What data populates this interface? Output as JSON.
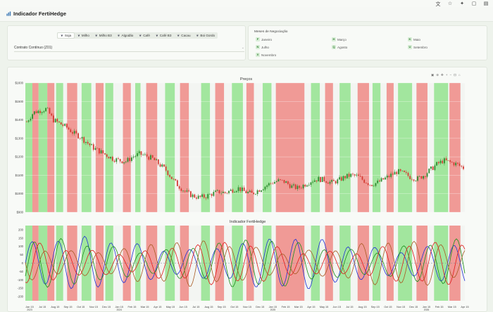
{
  "app": {
    "title": "Indicador FertiHedge"
  },
  "tabs": [
    {
      "label": "Soja",
      "active": true
    },
    {
      "label": "Milho",
      "active": false
    },
    {
      "label": "Milho B3",
      "active": false
    },
    {
      "label": "Algodão",
      "active": false
    },
    {
      "label": "Café",
      "active": false
    },
    {
      "label": "Café B3",
      "active": false
    },
    {
      "label": "Cacau",
      "active": false
    },
    {
      "label": "Boi Gordo",
      "active": false
    }
  ],
  "contract_select": {
    "value": "Contrato Contínuo (Z01)"
  },
  "months_legend": {
    "title": "Meses de Negociação",
    "items": [
      {
        "code": "F",
        "name": "Janeiro"
      },
      {
        "code": "H",
        "name": "Março"
      },
      {
        "code": "K",
        "name": "Maio"
      },
      {
        "code": "N",
        "name": "Julho"
      },
      {
        "code": "Q",
        "name": "Agosto"
      },
      {
        "code": "U",
        "name": "Setembro"
      },
      {
        "code": "X",
        "name": "Novembro"
      }
    ]
  },
  "colors": {
    "buy_band": "#93e38f",
    "sell_band": "#ee8a86",
    "price_up": "#2e8b2e",
    "price_down": "#d43b33",
    "osc_blue": "#1f2fd6",
    "osc_green": "#1a8f1a",
    "osc_red": "#e01b1b",
    "osc_brown": "#a85a22"
  },
  "chart_data": [
    {
      "type": "candlestick",
      "title": "Preços",
      "y_ticks": [
        "$1600",
        "$1500",
        "$1400",
        "$1300",
        "$1200",
        "$1100",
        "$1000",
        "$900"
      ],
      "ylim": [
        900,
        1600
      ],
      "price_path": [
        1390,
        1440,
        1450,
        1460,
        1400,
        1380,
        1360,
        1330,
        1310,
        1280,
        1250,
        1230,
        1210,
        1190,
        1180,
        1175,
        1200,
        1215,
        1205,
        1190,
        1160,
        1130,
        1080,
        1040,
        1010,
        990,
        980,
        985,
        1000,
        1010,
        1005,
        1020,
        1030,
        1010,
        1000,
        1020,
        1040,
        1060,
        1070,
        1065,
        1040,
        1030,
        1050,
        1070,
        1080,
        1075,
        1060,
        1070,
        1090,
        1100,
        1095,
        1070,
        1050,
        1060,
        1080,
        1100,
        1120,
        1110,
        1090,
        1080,
        1100,
        1130,
        1160,
        1180,
        1170,
        1160,
        1140
      ],
      "bands": [
        {
          "color": "buy",
          "from": 0.0,
          "to": 0.016
        },
        {
          "color": "sell",
          "from": 0.016,
          "to": 0.03
        },
        {
          "color": "buy",
          "from": 0.03,
          "to": 0.05
        },
        {
          "color": "sell",
          "from": 0.05,
          "to": 0.066
        },
        {
          "color": "buy",
          "from": 0.07,
          "to": 0.086
        },
        {
          "color": "sell",
          "from": 0.095,
          "to": 0.118
        },
        {
          "color": "buy",
          "from": 0.128,
          "to": 0.15
        },
        {
          "color": "sell",
          "from": 0.16,
          "to": 0.178
        },
        {
          "color": "buy",
          "from": 0.182,
          "to": 0.2
        },
        {
          "color": "sell",
          "from": 0.222,
          "to": 0.24
        },
        {
          "color": "buy",
          "from": 0.25,
          "to": 0.262
        },
        {
          "color": "sell",
          "from": 0.275,
          "to": 0.3
        },
        {
          "color": "buy",
          "from": 0.318,
          "to": 0.34
        },
        {
          "color": "sell",
          "from": 0.352,
          "to": 0.372
        },
        {
          "color": "buy",
          "from": 0.4,
          "to": 0.42
        },
        {
          "color": "sell",
          "from": 0.432,
          "to": 0.452
        },
        {
          "color": "buy",
          "from": 0.47,
          "to": 0.495
        },
        {
          "color": "sell",
          "from": 0.503,
          "to": 0.52
        },
        {
          "color": "buy",
          "from": 0.54,
          "to": 0.56
        },
        {
          "color": "sell",
          "from": 0.57,
          "to": 0.635
        },
        {
          "color": "buy",
          "from": 0.65,
          "to": 0.67
        },
        {
          "color": "sell",
          "from": 0.682,
          "to": 0.7
        },
        {
          "color": "buy",
          "from": 0.715,
          "to": 0.74
        },
        {
          "color": "sell",
          "from": 0.756,
          "to": 0.782
        },
        {
          "color": "buy",
          "from": 0.79,
          "to": 0.808
        },
        {
          "color": "sell",
          "from": 0.822,
          "to": 0.838
        },
        {
          "color": "buy",
          "from": 0.848,
          "to": 0.88
        },
        {
          "color": "sell",
          "from": 0.89,
          "to": 0.915
        },
        {
          "color": "buy",
          "from": 0.93,
          "to": 0.962
        },
        {
          "color": "sell",
          "from": 0.965,
          "to": 0.99
        }
      ]
    },
    {
      "type": "line",
      "title": "Indicador FertiHedge",
      "y_ticks": [
        "200",
        "150",
        "100",
        "50",
        "0",
        "-50",
        "-100",
        "-150",
        "-200"
      ],
      "ylim": [
        -225,
        225
      ],
      "x_ticks": [
        "Jan 15\n2023",
        "Jul 15",
        "Aug 15",
        "Sep 15",
        "Oct 15",
        "Nov 15",
        "Dec 15",
        "Jan 15\n2024",
        "Feb 15",
        "Mar 15",
        "Apr 15",
        "May 15",
        "Jun 15",
        "Jul 15",
        "Aug 15",
        "Sep 15",
        "Oct 15",
        "Nov 15",
        "Dec 15",
        "Jan 15\n2025",
        "Feb 15",
        "Mar 15",
        "Apr 15",
        "May 15",
        "Jun 15",
        "Jul 15",
        "Aug 15",
        "Sep 15",
        "Oct 15",
        "Nov 15",
        "Dec 15",
        "Jan 15\n2026",
        "Feb 15",
        "Mar 15",
        "Apr 15"
      ],
      "series": [
        {
          "color": "osc_blue",
          "amp": 150,
          "period": 0.06,
          "phase": 0.0
        },
        {
          "color": "osc_green",
          "amp": 140,
          "period": 0.06,
          "phase": 0.006
        },
        {
          "color": "osc_red",
          "amp": 120,
          "period": 0.06,
          "phase": 0.018
        },
        {
          "color": "osc_brown",
          "amp": 130,
          "period": 0.06,
          "phase": 0.03
        }
      ]
    }
  ]
}
